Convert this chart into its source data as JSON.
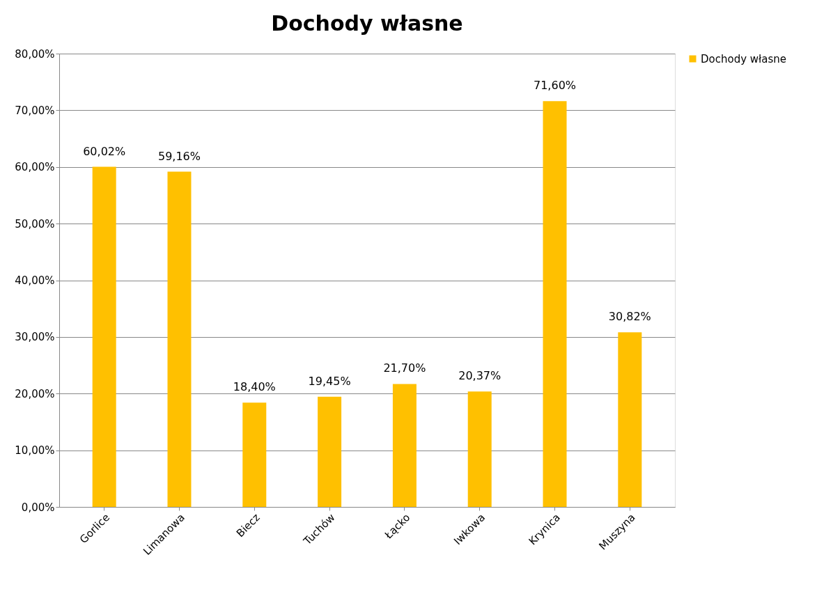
{
  "chart_data": {
    "type": "bar",
    "title": "Dochody własne",
    "categories": [
      "Gorlice",
      "Limanowa",
      "Biecz",
      "Tuchów",
      "Łącko",
      "Iwkowa",
      "Krynica",
      "Muszyna"
    ],
    "series": [
      {
        "name": "Dochody własne",
        "color": "#ffc000",
        "values": [
          60.02,
          59.16,
          18.4,
          19.45,
          21.7,
          20.37,
          71.6,
          30.82
        ],
        "value_labels": [
          "60,02%",
          "59,16%",
          "18,40%",
          "19,45%",
          "21,70%",
          "20,37%",
          "71,60%",
          "30,82%"
        ]
      }
    ],
    "ylim": [
      0,
      80
    ],
    "yticks": [
      {
        "value": 0,
        "label": "0,00%"
      },
      {
        "value": 10,
        "label": "10,00%"
      },
      {
        "value": 20,
        "label": "20,00%"
      },
      {
        "value": 30,
        "label": "30,00%"
      },
      {
        "value": 40,
        "label": "40,00%"
      },
      {
        "value": 50,
        "label": "50,00%"
      },
      {
        "value": 60,
        "label": "60,00%"
      },
      {
        "value": 70,
        "label": "70,00%"
      },
      {
        "value": 80,
        "label": "80,00%"
      }
    ],
    "grid": "y",
    "legend": "right"
  }
}
